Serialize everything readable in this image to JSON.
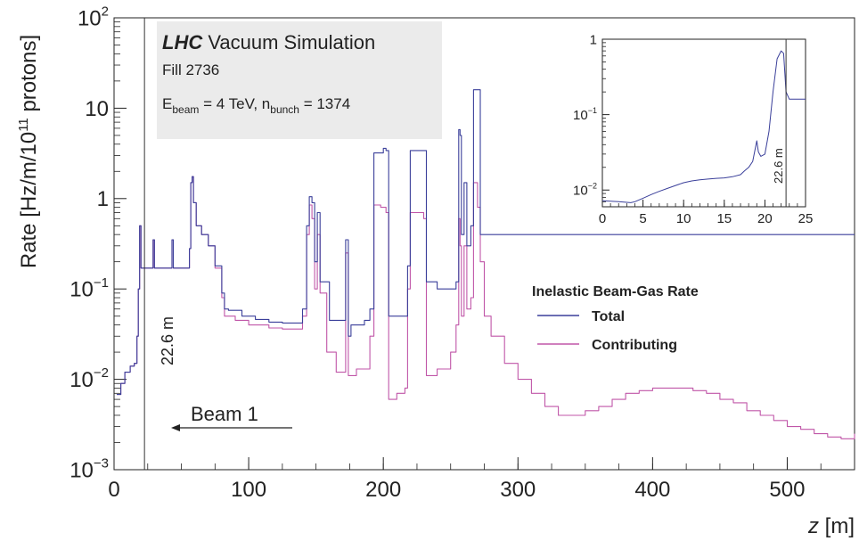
{
  "chart_data": [
    {
      "type": "line",
      "title": "",
      "header": {
        "brand": "LHC",
        "title": "Vacuum Simulation",
        "fill": "Fill 2736",
        "beam_prefix": "E",
        "beam_sub": "beam",
        "beam_mid": " = 4 TeV, n",
        "bunch_sub": "bunch",
        "bunch_tail": " = 1374"
      },
      "xlabel_var": "z",
      "xlabel_unit": " [m]",
      "ylabel_main": "Rate [Hz/m/10",
      "ylabel_exp": "11",
      "ylabel_tail": " protons]",
      "xlim": [
        0,
        550
      ],
      "ylim": [
        0.001,
        100
      ],
      "yscale": "log",
      "x_ticks": [
        {
          "v": 0,
          "label": "0"
        },
        {
          "v": 100,
          "label": "100"
        },
        {
          "v": 200,
          "label": "200"
        },
        {
          "v": 300,
          "label": "300"
        },
        {
          "v": 400,
          "label": "400"
        },
        {
          "v": 500,
          "label": "500"
        }
      ],
      "y_ticks": [
        {
          "v": 0.001,
          "base": "10",
          "exp": "−3"
        },
        {
          "v": 0.01,
          "base": "10",
          "exp": "−2"
        },
        {
          "v": 0.1,
          "base": "10",
          "exp": "−1"
        },
        {
          "v": 1,
          "base": "1",
          "exp": ""
        },
        {
          "v": 10,
          "base": "10",
          "exp": ""
        },
        {
          "v": 100,
          "base": "10",
          "exp": "2"
        }
      ],
      "vline": {
        "x": 22.6,
        "label": "22.6 m"
      },
      "beam_label": "Beam 1",
      "legend": {
        "title": "Inelastic Beam-Gas Rate",
        "placement": "center-right",
        "entries": [
          "Total",
          "Contributing"
        ]
      },
      "colors": {
        "total": "#3a3f9a",
        "contributing": "#c056a8"
      },
      "series": [
        {
          "name": "Total",
          "points": [
            [
              2,
              0.0068
            ],
            [
              5,
              0.009
            ],
            [
              8,
              0.012
            ],
            [
              12,
              0.014
            ],
            [
              15,
              0.015
            ],
            [
              17,
              0.03
            ],
            [
              18,
              0.1
            ],
            [
              19,
              0.5
            ],
            [
              20,
              0.17
            ],
            [
              22,
              0.17
            ],
            [
              28,
              0.17
            ],
            [
              29,
              0.35
            ],
            [
              30,
              0.17
            ],
            [
              42,
              0.17
            ],
            [
              43,
              0.35
            ],
            [
              44,
              0.17
            ],
            [
              54,
              0.17
            ],
            [
              56,
              0.28
            ],
            [
              57,
              1.5
            ],
            [
              58,
              1.75
            ],
            [
              59,
              0.9
            ],
            [
              61,
              0.5
            ],
            [
              65,
              0.4
            ],
            [
              70,
              0.3
            ],
            [
              75,
              0.18
            ],
            [
              80,
              0.09
            ],
            [
              82,
              0.06
            ],
            [
              85,
              0.058
            ],
            [
              95,
              0.05
            ],
            [
              105,
              0.046
            ],
            [
              115,
              0.043
            ],
            [
              125,
              0.042
            ],
            [
              138,
              0.042
            ],
            [
              140,
              0.06
            ],
            [
              143,
              0.5
            ],
            [
              145,
              1.05
            ],
            [
              147,
              0.9
            ],
            [
              149,
              0.2
            ],
            [
              151,
              0.7
            ],
            [
              153,
              0.12
            ],
            [
              160,
              0.045
            ],
            [
              170,
              0.045
            ],
            [
              172,
              0.35
            ],
            [
              174,
              0.03
            ],
            [
              176,
              0.04
            ],
            [
              186,
              0.045
            ],
            [
              190,
              0.06
            ],
            [
              193,
              3.2
            ],
            [
              200,
              3.6
            ],
            [
              202,
              3.4
            ],
            [
              204,
              0.05
            ],
            [
              216,
              0.05
            ],
            [
              218,
              0.18
            ],
            [
              220,
              3.4
            ],
            [
              230,
              3.4
            ],
            [
              232,
              0.12
            ],
            [
              240,
              0.1
            ],
            [
              250,
              0.1
            ],
            [
              254,
              0.12
            ],
            [
              256,
              5.8
            ],
            [
              257,
              5
            ],
            [
              258,
              0.4
            ],
            [
              260,
              1.5
            ],
            [
              262,
              0.3
            ],
            [
              265,
              0.5
            ],
            [
              267,
              16
            ],
            [
              270,
              16
            ],
            [
              272,
              0.4
            ],
            [
              550,
              0.4
            ]
          ]
        },
        {
          "name": "Contributing",
          "points": [
            [
              2,
              0.0068
            ],
            [
              5,
              0.009
            ],
            [
              8,
              0.012
            ],
            [
              12,
              0.014
            ],
            [
              15,
              0.015
            ],
            [
              17,
              0.03
            ],
            [
              18,
              0.1
            ],
            [
              19,
              0.5
            ],
            [
              20,
              0.17
            ],
            [
              22,
              0.17
            ],
            [
              28,
              0.17
            ],
            [
              29,
              0.35
            ],
            [
              30,
              0.17
            ],
            [
              42,
              0.17
            ],
            [
              43,
              0.35
            ],
            [
              44,
              0.17
            ],
            [
              54,
              0.17
            ],
            [
              56,
              0.28
            ],
            [
              57,
              1.5
            ],
            [
              58,
              1.75
            ],
            [
              59,
              0.9
            ],
            [
              61,
              0.5
            ],
            [
              65,
              0.4
            ],
            [
              70,
              0.3
            ],
            [
              75,
              0.17
            ],
            [
              80,
              0.08
            ],
            [
              82,
              0.05
            ],
            [
              90,
              0.045
            ],
            [
              100,
              0.04
            ],
            [
              115,
              0.037
            ],
            [
              125,
              0.036
            ],
            [
              138,
              0.036
            ],
            [
              140,
              0.05
            ],
            [
              143,
              0.4
            ],
            [
              145,
              0.85
            ],
            [
              147,
              0.6
            ],
            [
              149,
              0.1
            ],
            [
              151,
              0.4
            ],
            [
              153,
              0.09
            ],
            [
              158,
              0.02
            ],
            [
              165,
              0.012
            ],
            [
              170,
              0.012
            ],
            [
              172,
              0.25
            ],
            [
              174,
              0.011
            ],
            [
              180,
              0.013
            ],
            [
              186,
              0.013
            ],
            [
              190,
              0.03
            ],
            [
              193,
              0.85
            ],
            [
              198,
              0.8
            ],
            [
              202,
              0.7
            ],
            [
              204,
              0.006
            ],
            [
              210,
              0.007
            ],
            [
              216,
              0.008
            ],
            [
              218,
              0.1
            ],
            [
              220,
              0.7
            ],
            [
              230,
              0.6
            ],
            [
              232,
              0.011
            ],
            [
              240,
              0.013
            ],
            [
              250,
              0.02
            ],
            [
              254,
              0.04
            ],
            [
              256,
              0.6
            ],
            [
              257,
              0.3
            ],
            [
              258,
              0.05
            ],
            [
              260,
              0.3
            ],
            [
              262,
              0.06
            ],
            [
              265,
              0.08
            ],
            [
              267,
              1.5
            ],
            [
              270,
              0.8
            ],
            [
              272,
              0.2
            ],
            [
              275,
              0.05
            ],
            [
              280,
              0.03
            ],
            [
              290,
              0.015
            ],
            [
              300,
              0.01
            ],
            [
              310,
              0.007
            ],
            [
              320,
              0.005
            ],
            [
              330,
              0.004
            ],
            [
              340,
              0.004
            ],
            [
              350,
              0.0045
            ],
            [
              360,
              0.005
            ],
            [
              370,
              0.006
            ],
            [
              380,
              0.007
            ],
            [
              390,
              0.0075
            ],
            [
              400,
              0.008
            ],
            [
              410,
              0.008
            ],
            [
              420,
              0.008
            ],
            [
              430,
              0.0075
            ],
            [
              440,
              0.007
            ],
            [
              450,
              0.006
            ],
            [
              460,
              0.0055
            ],
            [
              470,
              0.0045
            ],
            [
              480,
              0.004
            ],
            [
              490,
              0.0035
            ],
            [
              500,
              0.003
            ],
            [
              510,
              0.0028
            ],
            [
              520,
              0.0025
            ],
            [
              530,
              0.0023
            ],
            [
              540,
              0.0022
            ],
            [
              550,
              0.0025
            ]
          ]
        }
      ]
    },
    {
      "type": "line",
      "title": "",
      "xlim": [
        0,
        25
      ],
      "ylim": [
        0.006,
        1
      ],
      "yscale": "log",
      "x_ticks": [
        {
          "v": 0,
          "label": "0"
        },
        {
          "v": 5,
          "label": "5"
        },
        {
          "v": 10,
          "label": "10"
        },
        {
          "v": 15,
          "label": "15"
        },
        {
          "v": 20,
          "label": "20"
        },
        {
          "v": 25,
          "label": "25"
        }
      ],
      "y_ticks": [
        {
          "v": 0.01,
          "base": "10",
          "exp": "−2"
        },
        {
          "v": 0.1,
          "base": "10",
          "exp": "−1"
        },
        {
          "v": 1,
          "base": "1",
          "exp": ""
        }
      ],
      "vline": {
        "x": 22.6,
        "label": "22.6 m"
      },
      "series": [
        {
          "name": "Total",
          "points": [
            [
              0,
              0.0072
            ],
            [
              2,
              0.007
            ],
            [
              3.5,
              0.0068
            ],
            [
              4,
              0.007
            ],
            [
              5,
              0.0078
            ],
            [
              6,
              0.0087
            ],
            [
              7,
              0.0096
            ],
            [
              8,
              0.0105
            ],
            [
              9,
              0.0115
            ],
            [
              10,
              0.0125
            ],
            [
              11,
              0.0132
            ],
            [
              12,
              0.0137
            ],
            [
              13,
              0.014
            ],
            [
              14,
              0.0143
            ],
            [
              15,
              0.0145
            ],
            [
              16,
              0.015
            ],
            [
              17,
              0.016
            ],
            [
              17.5,
              0.018
            ],
            [
              18,
              0.02
            ],
            [
              18.5,
              0.024
            ],
            [
              19,
              0.045
            ],
            [
              19.2,
              0.032
            ],
            [
              19.5,
              0.028
            ],
            [
              20,
              0.03
            ],
            [
              20.5,
              0.06
            ],
            [
              21,
              0.2
            ],
            [
              21.5,
              0.55
            ],
            [
              22,
              0.7
            ],
            [
              22.3,
              0.65
            ],
            [
              22.6,
              0.2
            ],
            [
              23,
              0.16
            ],
            [
              25,
              0.16
            ]
          ]
        }
      ]
    }
  ]
}
